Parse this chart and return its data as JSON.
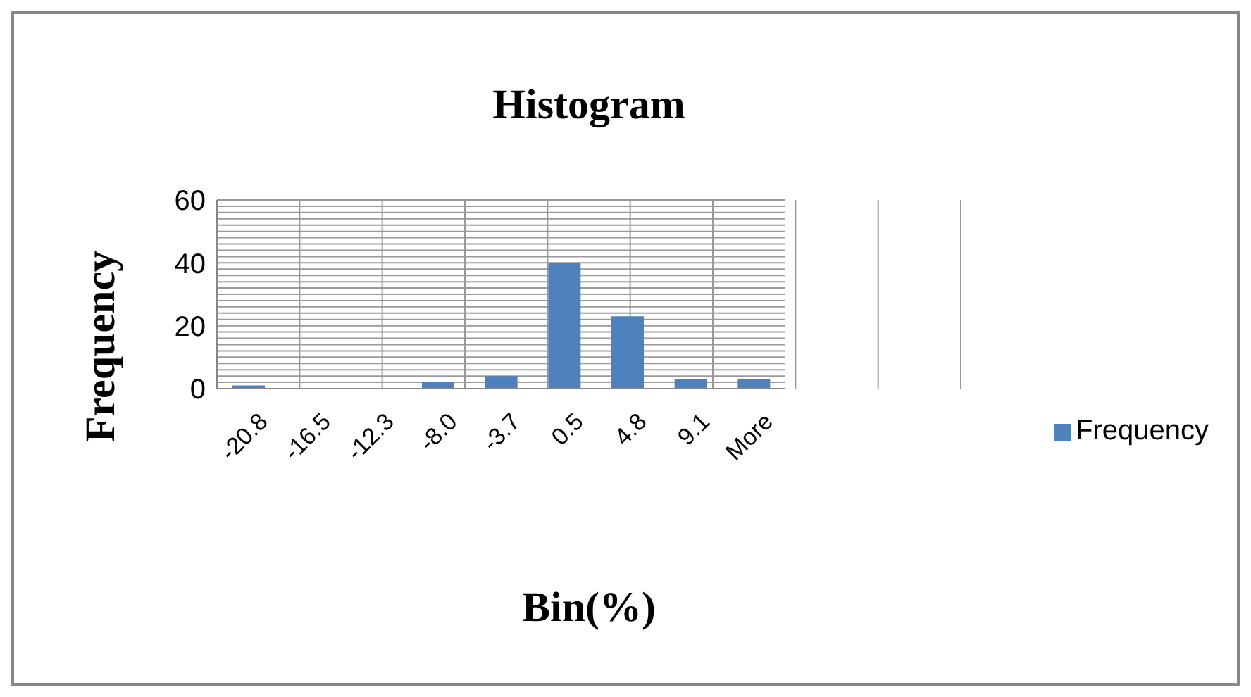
{
  "chart_data": {
    "type": "bar",
    "title": "Histogram",
    "xlabel": "Bin(%)",
    "ylabel": "Frequency",
    "categories": [
      "-20.8",
      "-16.5",
      "-12.3",
      "-8.0",
      "-3.7",
      "0.5",
      "4.8",
      "9.1",
      "More"
    ],
    "series": [
      {
        "name": "Frequency",
        "color": "#4f81bd",
        "values": [
          1,
          0,
          0,
          2,
          4,
          40,
          23,
          3,
          3
        ]
      }
    ],
    "ylim": [
      0,
      60
    ],
    "yticks": [
      0,
      {
        "value": 2,
        "label": null
      },
      {
        "value": 4,
        "label": null
      },
      {
        "value": 6,
        "label": null
      },
      {
        "value": 8,
        "label": null
      },
      {
        "value": 10,
        "label": null
      },
      {
        "value": 12,
        "label": null
      },
      {
        "value": 14,
        "label": null
      },
      {
        "value": 16,
        "label": null
      },
      {
        "value": 18,
        "label": null
      },
      20,
      {
        "value": 22,
        "label": null
      },
      {
        "value": 24,
        "label": null
      },
      {
        "value": 26,
        "label": null
      },
      {
        "value": 28,
        "label": null
      },
      {
        "value": 30,
        "label": null
      },
      {
        "value": 32,
        "label": null
      },
      {
        "value": 34,
        "label": null
      },
      {
        "value": 36,
        "label": null
      },
      {
        "value": 38,
        "label": null
      },
      40,
      {
        "value": 42,
        "label": null
      },
      {
        "value": 44,
        "label": null
      },
      {
        "value": 46,
        "label": null
      },
      {
        "value": 48,
        "label": null
      },
      {
        "value": 50,
        "label": null
      },
      {
        "value": 52,
        "label": null
      },
      {
        "value": 54,
        "label": null
      },
      {
        "value": 56,
        "label": null
      },
      {
        "value": 58,
        "label": null
      },
      60
    ],
    "grid": true,
    "legend": "right"
  }
}
